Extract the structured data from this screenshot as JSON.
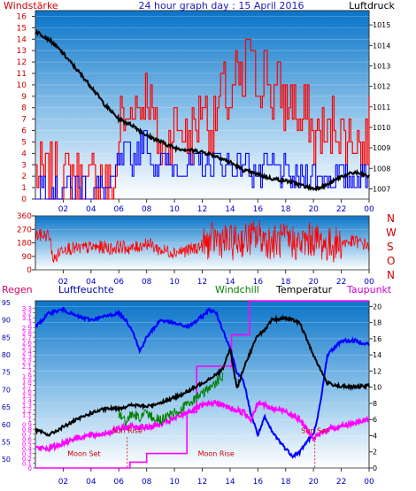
{
  "title": "24 hour graph day : 15 April 2016",
  "colors": {
    "wind_gust": "#ff0000",
    "wind_avg": "#0000ff",
    "pressure": "#000000",
    "direction": "#ff0000",
    "humidity": "#0000ff",
    "windchill": "#008000",
    "temperature": "#000000",
    "dewpoint": "#ff00ff",
    "rain": "#ff00ff",
    "axis_left": "#cc0000",
    "axis_blue": "#0000aa",
    "xtick": "#0000cc",
    "annotation": "#cc0000",
    "bg_top": "#0a74c8",
    "bg_bottom": "#ffffff"
  },
  "chart_data": [
    {
      "type": "line",
      "panel": "wind",
      "left_axis_label": "Windstärke",
      "right_axis_label": "Luftdruck",
      "x_ticks": [
        "02",
        "04",
        "06",
        "08",
        "10",
        "12",
        "14",
        "16",
        "18",
        "20",
        "22",
        "00"
      ],
      "left_ticks": [
        "0",
        "1",
        "2",
        "3",
        "4",
        "5",
        "6",
        "7",
        "8",
        "9",
        "10",
        "11",
        "12",
        "13",
        "14",
        "15",
        "16"
      ],
      "right_ticks": [
        "1007",
        "1008",
        "1009",
        "1010",
        "1011",
        "1012",
        "1013",
        "1014",
        "1015"
      ],
      "xlim": [
        0,
        24
      ],
      "ylim_left": [
        0,
        16.5
      ],
      "ylim_right": [
        1006.5,
        1015.7
      ],
      "series": [
        {
          "key": "gust",
          "x": [
            0,
            1.5,
            1.6,
            2,
            3,
            3.5,
            4,
            5,
            5.5,
            5.8,
            6,
            6.2,
            6.5,
            7,
            7.5,
            8,
            8.5,
            9,
            9.5,
            10,
            10.5,
            11,
            11.5,
            12,
            12.5,
            13,
            13.5,
            14,
            14.5,
            15,
            15.3,
            15.5,
            16,
            16.5,
            17,
            17.5,
            18,
            18.5,
            19,
            19.5,
            20,
            20.5,
            21,
            21.5,
            22,
            22.5,
            23,
            23.5,
            24
          ],
          "values": [
            2,
            2,
            0,
            2,
            2,
            0,
            2,
            2,
            0,
            2,
            6,
            8,
            6,
            9,
            8,
            10,
            7,
            4,
            5,
            7,
            6,
            5,
            6,
            9,
            6,
            7,
            10,
            8,
            11,
            9,
            16,
            11,
            10,
            12,
            9,
            10,
            8,
            9,
            6,
            8,
            5,
            6,
            5,
            7,
            6,
            5,
            6,
            4,
            6
          ]
        },
        {
          "key": "average",
          "x": [
            0,
            2,
            4,
            5.5,
            6,
            6.5,
            7,
            7.5,
            8,
            8.5,
            9,
            10,
            11,
            12,
            13,
            14,
            15,
            16,
            17,
            18,
            19,
            20,
            21,
            22,
            23,
            24
          ],
          "values": [
            1,
            1,
            1,
            1,
            3,
            4,
            3,
            5,
            5,
            3,
            3,
            3,
            3,
            3,
            3,
            3,
            3,
            2,
            3,
            2,
            2,
            2,
            2,
            2,
            2,
            2
          ]
        },
        {
          "key": "pressure",
          "x": [
            0,
            1,
            2,
            3,
            4,
            5,
            6,
            7,
            8,
            9,
            10,
            11,
            12,
            13,
            14,
            15,
            16,
            17,
            18,
            19,
            20,
            21,
            22,
            23,
            24
          ],
          "values": [
            1014.7,
            1014.3,
            1013.6,
            1012.8,
            1012.0,
            1011.1,
            1010.4,
            1010.1,
            1009.6,
            1009.3,
            1009.0,
            1008.9,
            1008.8,
            1008.6,
            1008.3,
            1007.9,
            1007.7,
            1007.5,
            1007.4,
            1007.2,
            1007.0,
            1007.2,
            1007.6,
            1007.8,
            1007.6
          ]
        }
      ]
    },
    {
      "type": "line",
      "panel": "direction",
      "left_ticks": [
        "0",
        "90",
        "180",
        "270",
        "360"
      ],
      "compass_labels": [
        "N",
        "W",
        "S",
        "O",
        "N"
      ],
      "xlim": [
        0,
        24
      ],
      "ylim": [
        0,
        360
      ],
      "series": [
        {
          "key": "direction",
          "x": [
            0,
            1,
            1.3,
            2,
            3,
            4,
            5,
            5.5,
            6,
            7,
            8,
            9,
            10,
            11,
            12,
            13,
            14,
            15,
            16,
            17,
            18,
            19,
            20,
            21,
            22,
            23,
            24
          ],
          "values": [
            230,
            230,
            60,
            150,
            140,
            150,
            150,
            140,
            155,
            140,
            180,
            130,
            120,
            130,
            160,
            210,
            180,
            200,
            230,
            180,
            200,
            170,
            210,
            160,
            180,
            190,
            160
          ]
        }
      ]
    },
    {
      "type": "line",
      "panel": "thermo",
      "labels": {
        "rain": "Regen",
        "humidity": "Luftfeuchte",
        "windchill": "Windchill",
        "temperature": "Temperatur",
        "dewpoint": "Taupunkt"
      },
      "humidity_ticks": [
        "50",
        "55",
        "60",
        "65",
        "70",
        "75",
        "80",
        "85",
        "90",
        "95"
      ],
      "rain_ticks": [
        "0",
        "0.1",
        "0.2",
        "0.3",
        "0.4",
        "0.5",
        "0.6",
        "0.7",
        "0.8",
        "0.9",
        "1",
        "1.1",
        "1.2",
        "1.3",
        "1.4",
        "1.5",
        "1.6",
        "1.7",
        "1.8",
        "1.9",
        "2",
        "2.1",
        "2.2",
        "2.3",
        "2.4",
        "2.5",
        "2.6",
        "2.7",
        "2.8",
        "2.9",
        "3",
        "3.1",
        "3.2",
        "3.3"
      ],
      "temp_ticks": [
        "0",
        "2",
        "4",
        "6",
        "8",
        "10",
        "12",
        "14",
        "16",
        "18",
        "20"
      ],
      "xlim": [
        0,
        24
      ],
      "ylim_temp": [
        0,
        20.7
      ],
      "ylim_humidity": [
        47.5,
        95.5
      ],
      "ylim_rain": [
        0,
        3.45
      ],
      "annotations": [
        {
          "text": "Moon Set",
          "hour": 3.5,
          "value": 1.5
        },
        {
          "text": "Sun Rise",
          "hour": 6.6,
          "value": 4.3
        },
        {
          "text": "Moon Rise",
          "hour": 13.0,
          "value": 1.5
        },
        {
          "text": "Sun Set",
          "hour": 20.1,
          "value": 4.3
        }
      ],
      "series": [
        {
          "key": "humidity",
          "x": [
            0,
            1,
            2,
            2.5,
            3,
            4,
            5,
            6,
            6.5,
            7,
            7.5,
            8,
            9,
            10,
            11,
            12,
            12.5,
            13,
            13.5,
            14,
            14.5,
            15,
            15.5,
            16,
            16.5,
            17,
            18,
            18.5,
            19,
            19.5,
            20,
            20.5,
            21,
            22,
            23,
            24
          ],
          "values": [
            88,
            92,
            93,
            92,
            91,
            90,
            91,
            92,
            90,
            87,
            81,
            85,
            90,
            89,
            88,
            91,
            93,
            92,
            87,
            82,
            75,
            72,
            63,
            57,
            62,
            58,
            53,
            51,
            52,
            55,
            57,
            66,
            80,
            84,
            84,
            83
          ]
        },
        {
          "key": "temperature",
          "x": [
            0,
            1,
            2,
            3,
            4,
            5,
            6,
            7,
            8,
            9,
            10,
            11,
            12,
            13,
            13.5,
            14,
            14.5,
            15,
            15.5,
            16,
            16.5,
            17,
            18,
            19,
            20,
            20.5,
            21,
            22,
            23,
            24
          ],
          "values": [
            4.7,
            4.1,
            5.1,
            6.0,
            6.8,
            7.3,
            7.4,
            7.8,
            7.6,
            8.1,
            8.7,
            9.5,
            10.5,
            11.6,
            12.3,
            14.8,
            9.8,
            12.5,
            14.5,
            16.5,
            17.0,
            18.3,
            18.6,
            18.0,
            14.0,
            12.2,
            10.5,
            10.1,
            10.0,
            10.2
          ]
        },
        {
          "key": "windchill",
          "x": [
            6,
            6.5,
            7,
            7.5,
            8,
            9,
            10,
            11,
            12,
            13,
            13.5
          ],
          "values": [
            7.4,
            6.3,
            7.5,
            6.8,
            7.4,
            6.5,
            7.6,
            8.5,
            9.8,
            11.2,
            12.0
          ]
        },
        {
          "key": "dewpoint",
          "x": [
            0,
            1,
            2,
            3,
            4,
            5,
            6,
            7,
            8,
            9,
            10,
            11,
            12,
            13,
            14,
            15,
            15.5,
            16,
            17,
            18,
            19,
            20,
            21,
            22,
            23,
            24
          ],
          "values": [
            2.5,
            2.4,
            3.1,
            3.8,
            4.0,
            4.3,
            4.8,
            5.2,
            5.0,
            5.4,
            6.1,
            7.0,
            7.7,
            8.1,
            7.4,
            6.9,
            6.0,
            8.2,
            7.3,
            7.1,
            6.0,
            3.6,
            4.8,
            5.2,
            5.6,
            6.0
          ]
        },
        {
          "key": "rain",
          "x": [
            0,
            6.8,
            6.8,
            8.0,
            8.0,
            10.9,
            10.9,
            11.6,
            11.6,
            14.1,
            14.1,
            15.4,
            15.4,
            24
          ],
          "values": [
            0,
            0,
            0.12,
            0.12,
            0.3,
            0.3,
            1.15,
            1.15,
            2.1,
            2.1,
            2.75,
            2.75,
            3.45,
            3.45
          ]
        }
      ]
    }
  ]
}
